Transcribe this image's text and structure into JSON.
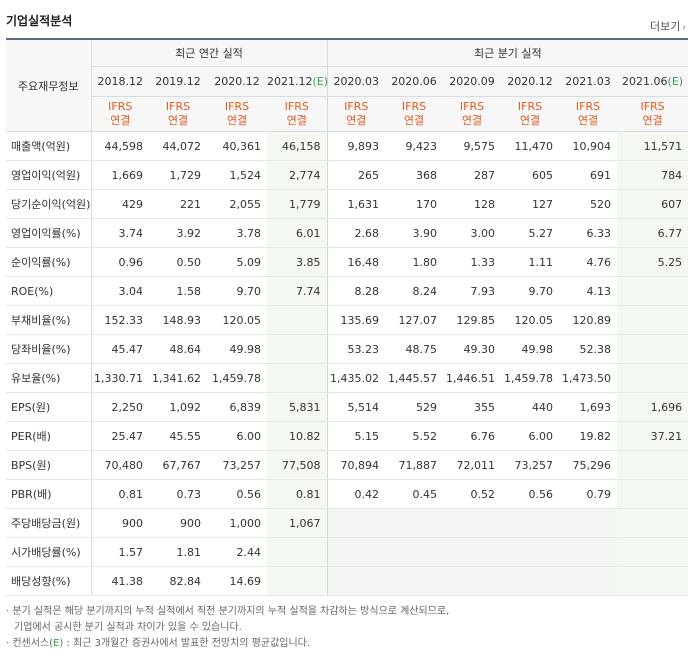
{
  "header": {
    "title": "기업실적분석",
    "more_label": "더보기"
  },
  "table": {
    "row_header_label": "주요재무정보",
    "groups": {
      "annual": "최근 연간 실적",
      "quarterly": "최근 분기 실적"
    },
    "periods": [
      {
        "year": "2018.12",
        "est": ""
      },
      {
        "year": "2019.12",
        "est": ""
      },
      {
        "year": "2020.12",
        "est": ""
      },
      {
        "year": "2021.12",
        "est": "(E)"
      },
      {
        "year": "2020.03",
        "est": ""
      },
      {
        "year": "2020.06",
        "est": ""
      },
      {
        "year": "2020.09",
        "est": ""
      },
      {
        "year": "2020.12",
        "est": ""
      },
      {
        "year": "2021.03",
        "est": ""
      },
      {
        "year": "2021.06",
        "est": "(E)"
      }
    ],
    "basis": {
      "ifrs": "IFRS",
      "consolidated": "연결"
    },
    "rows": [
      {
        "label": "매출액(억원)",
        "values": [
          "44,598",
          "44,072",
          "40,361",
          "46,158",
          "9,893",
          "9,423",
          "9,575",
          "11,470",
          "10,904",
          "11,571"
        ]
      },
      {
        "label": "영업이익(억원)",
        "values": [
          "1,669",
          "1,729",
          "1,524",
          "2,774",
          "265",
          "368",
          "287",
          "605",
          "691",
          "784"
        ]
      },
      {
        "label": "당기순이익(억원)",
        "values": [
          "429",
          "221",
          "2,055",
          "1,779",
          "1,631",
          "170",
          "128",
          "127",
          "520",
          "607"
        ]
      },
      {
        "label": "영업이익률(%)",
        "values": [
          "3.74",
          "3.92",
          "3.78",
          "6.01",
          "2.68",
          "3.90",
          "3.00",
          "5.27",
          "6.33",
          "6.77"
        ]
      },
      {
        "label": "순이익률(%)",
        "values": [
          "0.96",
          "0.50",
          "5.09",
          "3.85",
          "16.48",
          "1.80",
          "1.33",
          "1.11",
          "4.76",
          "5.25"
        ]
      },
      {
        "label": "ROE(%)",
        "values": [
          "3.04",
          "1.58",
          "9.70",
          "7.74",
          "8.28",
          "8.24",
          "7.93",
          "9.70",
          "4.13",
          ""
        ]
      },
      {
        "label": "부채비율(%)",
        "values": [
          "152.33",
          "148.93",
          "120.05",
          "",
          "135.69",
          "127.07",
          "129.85",
          "120.05",
          "120.89",
          ""
        ]
      },
      {
        "label": "당좌비율(%)",
        "values": [
          "45.47",
          "48.64",
          "49.98",
          "",
          "53.23",
          "48.75",
          "49.30",
          "49.98",
          "52.38",
          ""
        ]
      },
      {
        "label": "유보율(%)",
        "values": [
          "1,330.71",
          "1,341.62",
          "1,459.78",
          "",
          "1,435.02",
          "1,445.57",
          "1,446.51",
          "1,459.78",
          "1,473.50",
          ""
        ]
      },
      {
        "label": "EPS(원)",
        "values": [
          "2,250",
          "1,092",
          "6,839",
          "5,831",
          "5,514",
          "529",
          "355",
          "440",
          "1,693",
          "1,696"
        ]
      },
      {
        "label": "PER(배)",
        "values": [
          "25.47",
          "45.55",
          "6.00",
          "10.82",
          "5.15",
          "5.52",
          "6.76",
          "6.00",
          "19.82",
          "37.21"
        ]
      },
      {
        "label": "BPS(원)",
        "values": [
          "70,480",
          "67,767",
          "73,257",
          "77,508",
          "70,894",
          "71,887",
          "72,011",
          "73,257",
          "75,296",
          ""
        ]
      },
      {
        "label": "PBR(배)",
        "values": [
          "0.81",
          "0.73",
          "0.56",
          "0.81",
          "0.42",
          "0.45",
          "0.52",
          "0.56",
          "0.79",
          ""
        ]
      },
      {
        "label": "주당배당금(원)",
        "values": [
          "900",
          "900",
          "1,000",
          "1,067",
          "",
          "",
          "",
          "",
          "",
          ""
        ]
      },
      {
        "label": "시가배당률(%)",
        "values": [
          "1.57",
          "1.81",
          "2.44",
          "",
          "",
          "",
          "",
          "",
          "",
          ""
        ]
      },
      {
        "label": "배당성향(%)",
        "values": [
          "41.38",
          "82.84",
          "14.69",
          "",
          "",
          "",
          "",
          "",
          "",
          ""
        ]
      }
    ]
  },
  "notes": {
    "note1_line1": "· 분기 실적은 해당 분기까지의 누적 실적에서 직전 분기까지의 누적 실적을 차감하는 방식으로 계산되므로,",
    "note1_line2": "기업에서 공시한 분기 실적과 차이가 있을 수 있습니다.",
    "note2_prefix": "· 컨센서스(",
    "note2_e": "E",
    "note2_rest": ") : 최근 3개월간 증권사에서 발표한 전망치의 평균값입니다."
  }
}
